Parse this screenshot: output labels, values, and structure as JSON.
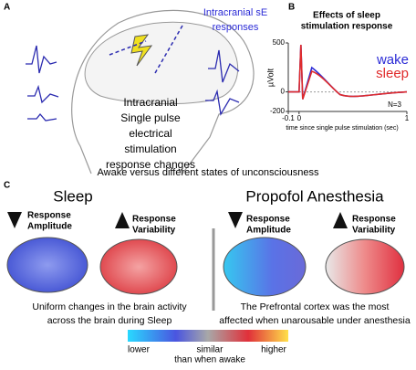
{
  "panel_a": {
    "label": "A",
    "electrode_label": [
      "Intracranial sE",
      "responses"
    ],
    "description": [
      "Intracranial",
      "Single pulse",
      "electrical",
      "stimulation",
      "response changes"
    ]
  },
  "panel_b": {
    "label": "B",
    "title": [
      "Effects of sleep",
      "stimulation response"
    ],
    "y_label": "µVolt",
    "x_label": "time since single pulse stimulation (sec)",
    "note": "N=3",
    "series": [
      {
        "name": "wake",
        "color": "#2b2bd6"
      },
      {
        "name": "sleep",
        "color": "#e02b2b"
      }
    ],
    "xlim": [
      -0.1,
      1
    ],
    "xticks": [
      -0.1,
      0,
      1
    ],
    "ylim": [
      -200,
      500
    ],
    "yticks": [
      500,
      0,
      -200
    ]
  },
  "caption": "Awake versus different states of unconsciousness",
  "panel_c": {
    "label": "C",
    "sleep": {
      "title": "Sleep",
      "amplitude": [
        "Response",
        "Amplitude"
      ],
      "variability": [
        "Response",
        "Variability"
      ],
      "text": [
        "Uniform changes in the brain activity",
        "across the brain during Sleep"
      ]
    },
    "anesthesia": {
      "title": "Propofol Anesthesia",
      "amplitude": [
        "Response",
        "Amplitude"
      ],
      "variability": [
        "Response",
        "Variability"
      ],
      "text": [
        "The Prefrontal cortex was the most",
        "affected when unarousable under anesthesia"
      ]
    },
    "scale": {
      "lower": "lower",
      "similar": [
        "similar",
        "than when awake"
      ],
      "higher": "higher"
    }
  }
}
